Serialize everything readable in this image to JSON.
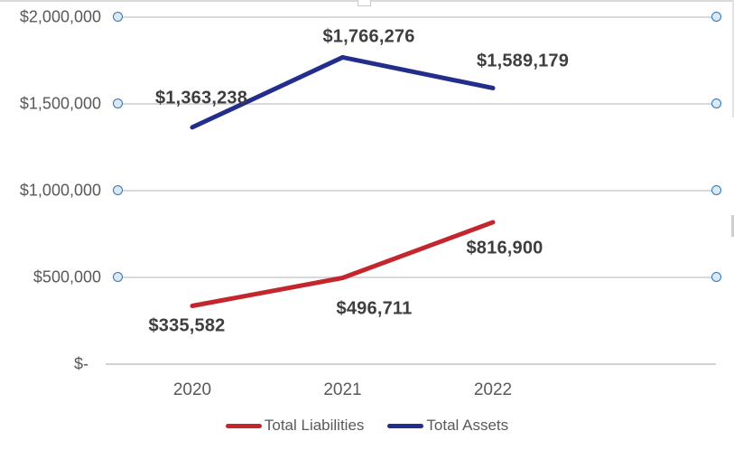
{
  "chart_data": {
    "type": "line",
    "categories": [
      "2020",
      "2021",
      "2022"
    ],
    "series": [
      {
        "name": "Total Liabilities",
        "color": "#C4262E",
        "values": [
          335582,
          496711,
          816900
        ],
        "point_labels": [
          "$335,582",
          "$496,711",
          "$816,900"
        ]
      },
      {
        "name": "Total Assets",
        "color": "#232E8C",
        "values": [
          1363238,
          1766276,
          1589179
        ],
        "point_labels": [
          "$1,363,238",
          "$1,766,276",
          "$1,589,179"
        ]
      }
    ],
    "y_axis": {
      "min": 0,
      "max": 2000000,
      "ticks": [
        {
          "value": 2000000,
          "label": "$2,000,000"
        },
        {
          "value": 1500000,
          "label": "$1,500,000"
        },
        {
          "value": 1000000,
          "label": "$1,000,000"
        },
        {
          "value": 500000,
          "label": "$500,000"
        },
        {
          "value": 0,
          "label": "$-"
        }
      ]
    },
    "title": "",
    "xlabel": "",
    "ylabel": "",
    "grid": true,
    "legend_position": "bottom",
    "gridline_marker": "circle-icon"
  },
  "colors": {
    "gridline": "#D9D9D9",
    "axis_text": "#595959",
    "data_label_text": "#3E3E3E",
    "marker_fill": "#D9EAF7",
    "marker_stroke": "#2E75B6",
    "liabilities_line": "#C4262E",
    "assets_line": "#232E8C"
  }
}
